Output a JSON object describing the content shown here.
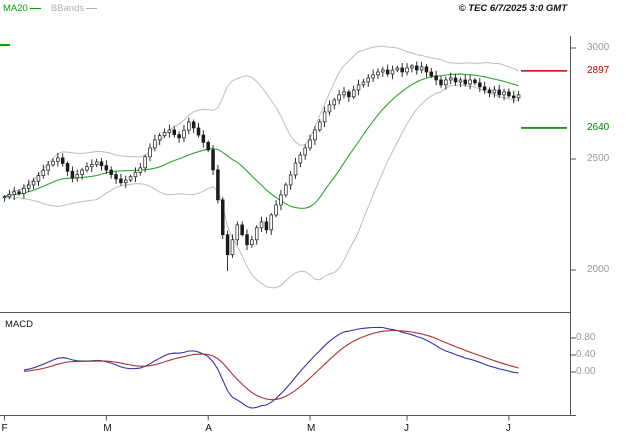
{
  "header": {
    "legend": [
      {
        "label": "MA20",
        "color": "#00A300"
      },
      {
        "label": "BBands",
        "color": "#B0B0B0"
      }
    ],
    "copyright": "© TEC 6/7/2025 3:0 GMT"
  },
  "chart_data": {
    "type": "candlestick",
    "x_axis": {
      "months": [
        {
          "label": "F",
          "index": 0
        },
        {
          "label": "M",
          "index": 21
        },
        {
          "label": "A",
          "index": 42
        },
        {
          "label": "M",
          "index": 63
        },
        {
          "label": "J",
          "index": 83
        },
        {
          "label": "J",
          "index": 104
        }
      ]
    },
    "price_axis": {
      "ticks": [
        3000,
        2500,
        2000
      ],
      "tick_labels": [
        "3000",
        "2500",
        "2000"
      ],
      "min": 1820,
      "max": 3055
    },
    "closes": [
      2330,
      2340,
      2352,
      2345,
      2368,
      2383,
      2400,
      2425,
      2450,
      2473,
      2490,
      2505,
      2480,
      2445,
      2415,
      2430,
      2450,
      2465,
      2475,
      2487,
      2470,
      2450,
      2430,
      2410,
      2393,
      2405,
      2420,
      2440,
      2460,
      2510,
      2550,
      2586,
      2605,
      2620,
      2631,
      2610,
      2595,
      2630,
      2667,
      2640,
      2608,
      2575,
      2541,
      2451,
      2316,
      2159,
      2069,
      2136,
      2203,
      2159,
      2114,
      2136,
      2190,
      2217,
      2181,
      2248,
      2293,
      2338,
      2383,
      2428,
      2482,
      2518,
      2550,
      2586,
      2631,
      2667,
      2712,
      2744,
      2766,
      2789,
      2802,
      2780,
      2811,
      2834,
      2847,
      2865,
      2879,
      2892,
      2901,
      2883,
      2901,
      2910,
      2892,
      2910,
      2919,
      2901,
      2915,
      2892,
      2874,
      2856,
      2834,
      2856,
      2865,
      2847,
      2856,
      2838,
      2856,
      2843,
      2825,
      2811,
      2798,
      2811,
      2789,
      2802,
      2784,
      2775,
      2789
    ],
    "low_override": {
      "index": 46,
      "low": 1995
    },
    "overlays": [
      {
        "name": "MA20",
        "window": 20,
        "color": "#2FA32F"
      },
      {
        "name": "BBands",
        "window": 20,
        "stddev": 2,
        "color": "#BDBDBD"
      }
    ],
    "levels": [
      {
        "label": "2897",
        "value": 2897,
        "color": "#CC0000"
      },
      {
        "label": "2640",
        "value": 2640,
        "color": "#008000"
      }
    ],
    "macd": {
      "label": "MACD",
      "fast": 12,
      "slow": 26,
      "signal": 9,
      "line_color": "#3333AA",
      "signal_color": "#AA3333",
      "axis_ticks": [
        {
          "label": "0.80",
          "value": 0.8
        },
        {
          "label": "0.40",
          "value": 0.4
        },
        {
          "label": "0.00",
          "value": 0.0
        }
      ]
    },
    "candle_color": "#1A1A1A"
  }
}
